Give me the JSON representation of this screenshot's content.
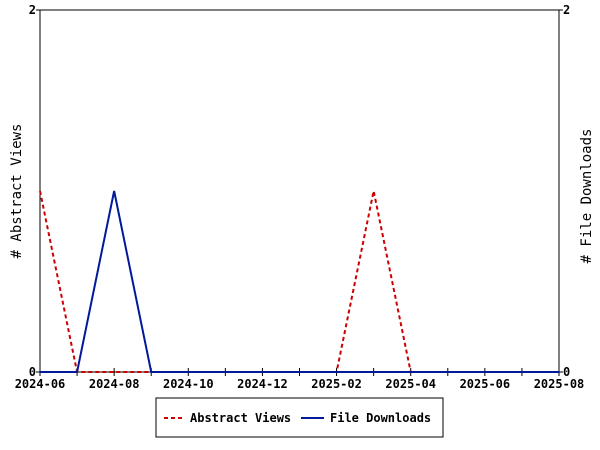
{
  "chart_data": {
    "type": "line",
    "x": [
      "2024-06",
      "2024-07",
      "2024-08",
      "2024-09",
      "2024-10",
      "2024-11",
      "2024-12",
      "2025-01",
      "2025-02",
      "2025-03",
      "2025-04",
      "2025-05",
      "2025-06",
      "2025-07",
      "2025-08"
    ],
    "x_tick_labels": [
      "2024-06",
      "2024-08",
      "2024-10",
      "2024-12",
      "2025-02",
      "2025-04",
      "2025-06",
      "2025-08"
    ],
    "series": [
      {
        "name": "Abstract Views",
        "axis": "left",
        "color": "#cc0000",
        "style": "dashed",
        "values": [
          1,
          0,
          0,
          0,
          0,
          0,
          0,
          0,
          0,
          1,
          0,
          0,
          0,
          0,
          0
        ]
      },
      {
        "name": "File Downloads",
        "axis": "right",
        "color": "#001a99",
        "style": "solid",
        "values": [
          0,
          0,
          1,
          0,
          0,
          0,
          0,
          0,
          0,
          0,
          0,
          0,
          0,
          0,
          0
        ]
      }
    ],
    "ylabel_left": "# Abstract Views",
    "ylabel_right": "# File Downloads",
    "ylim_left": [
      0,
      2
    ],
    "ylim_right": [
      0,
      2
    ],
    "y_ticks_left": [
      "0",
      "2"
    ],
    "y_ticks_right": [
      "0",
      "2"
    ],
    "legend_position": "bottom-center",
    "grid": false
  }
}
